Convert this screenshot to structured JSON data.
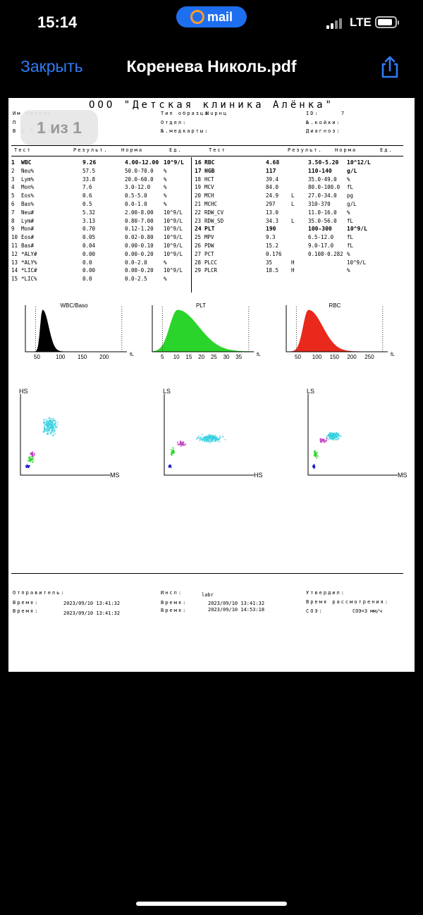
{
  "status_bar": {
    "time": "15:14",
    "pill_label": "mail",
    "network": "LTE"
  },
  "nav": {
    "close_label": "Закрыть",
    "title": "Коренева Николь.pdf"
  },
  "page_badge": "1 из 1",
  "report": {
    "clinic": "ООО \"Детская клиника Алёнка\"",
    "header_fields": [
      {
        "text": "Им         николь"
      },
      {
        "text": "П"
      },
      {
        "text": "В              1 5 День"
      },
      {
        "text": "Тип образца"
      },
      {
        "text": "Nuрнц"
      },
      {
        "text": "Отдел:"
      },
      {
        "text": "№.медкарты:"
      },
      {
        "text": "ID:"
      },
      {
        "text": "7"
      },
      {
        "text": "№.койки:"
      },
      {
        "text": "Диагноз:"
      }
    ],
    "col_headers": {
      "test": "Тест",
      "result": "Результ.",
      "norm": "Норма",
      "unit": "Ед."
    },
    "left_rows": [
      {
        "n": "1",
        "name": "WBC",
        "val": "9.26",
        "flag": "",
        "norm": "4.00-12.00",
        "unit": "10^9/L",
        "bold": true
      },
      {
        "n": "2",
        "name": "Neu%",
        "val": "57.5",
        "flag": "",
        "norm": "50.0-70.0",
        "unit": "%",
        "bold": false
      },
      {
        "n": "3",
        "name": "Lym%",
        "val": "33.8",
        "flag": "",
        "norm": "20.0-60.0",
        "unit": "%",
        "bold": false
      },
      {
        "n": "4",
        "name": "Mon%",
        "val": "7.6",
        "flag": "",
        "norm": "3.0-12.0",
        "unit": "%",
        "bold": false
      },
      {
        "n": "5",
        "name": "Eos%",
        "val": "0.6",
        "flag": "",
        "norm": "0.5-5.0",
        "unit": "%",
        "bold": false
      },
      {
        "n": "6",
        "name": "Bas%",
        "val": "0.5",
        "flag": "",
        "norm": "0.0-1.0",
        "unit": "%",
        "bold": false
      },
      {
        "n": "7",
        "name": "Neu#",
        "val": "5.32",
        "flag": "",
        "norm": "2.00-8.00",
        "unit": "10^9/L",
        "bold": false
      },
      {
        "n": "8",
        "name": "Lym#",
        "val": "3.13",
        "flag": "",
        "norm": "0.80-7.00",
        "unit": "10^9/L",
        "bold": false
      },
      {
        "n": "9",
        "name": "Mon#",
        "val": "0.70",
        "flag": "",
        "norm": "0.12-1.20",
        "unit": "10^9/L",
        "bold": false
      },
      {
        "n": "10",
        "name": "Eos#",
        "val": "0.05",
        "flag": "",
        "norm": "0.02-0.80",
        "unit": "10^9/L",
        "bold": false
      },
      {
        "n": "11",
        "name": "Bas#",
        "val": "0.04",
        "flag": "",
        "norm": "0.00-0.10",
        "unit": "10^9/L",
        "bold": false
      },
      {
        "n": "12",
        "name": "*ALY#",
        "val": "0.00",
        "flag": "",
        "norm": "0.00-0.20",
        "unit": "10^9/L",
        "bold": false
      },
      {
        "n": "13",
        "name": "*ALY%",
        "val": "0.0",
        "flag": "",
        "norm": "0.0-2.0",
        "unit": "%",
        "bold": false
      },
      {
        "n": "14",
        "name": "*LIC#",
        "val": "0.00",
        "flag": "",
        "norm": "0.00-0.20",
        "unit": "10^9/L",
        "bold": false
      },
      {
        "n": "15",
        "name": "*LIC%",
        "val": "0.0",
        "flag": "",
        "norm": "0.0-2.5",
        "unit": "%",
        "bold": false
      }
    ],
    "right_rows": [
      {
        "n": "16",
        "name": "RBC",
        "val": "4.68",
        "flag": "",
        "norm": "3.50-5.20",
        "unit": "10^12/L",
        "bold": true
      },
      {
        "n": "17",
        "name": "HGB",
        "val": "117",
        "flag": "",
        "norm": "110-140",
        "unit": "g/L",
        "bold": true
      },
      {
        "n": "18",
        "name": "HCT",
        "val": "39.4",
        "flag": "",
        "norm": "35.0-49.0",
        "unit": "%",
        "bold": false
      },
      {
        "n": "19",
        "name": "MCV",
        "val": "84.0",
        "flag": "",
        "norm": "80.0-100.0",
        "unit": "fL",
        "bold": false
      },
      {
        "n": "20",
        "name": "MCH",
        "val": "24.9",
        "flag": "L",
        "norm": "27.0-34.0",
        "unit": "pg",
        "bold": false
      },
      {
        "n": "21",
        "name": "MCHC",
        "val": "297",
        "flag": "L",
        "norm": "310-370",
        "unit": "g/L",
        "bold": false
      },
      {
        "n": "22",
        "name": "RDW_CV",
        "val": "13.0",
        "flag": "",
        "norm": "11.0-16.0",
        "unit": "%",
        "bold": false
      },
      {
        "n": "23",
        "name": "RDW_SD",
        "val": "34.3",
        "flag": "L",
        "norm": "35.0-56.0",
        "unit": "fL",
        "bold": false
      },
      {
        "n": "24",
        "name": "PLT",
        "val": "190",
        "flag": "",
        "norm": "100-300",
        "unit": "10^9/L",
        "bold": true
      },
      {
        "n": "25",
        "name": "MPV",
        "val": "9.3",
        "flag": "",
        "norm": "6.5-12.0",
        "unit": "fL",
        "bold": false
      },
      {
        "n": "26",
        "name": "PDW",
        "val": "15.2",
        "flag": "",
        "norm": "9.0-17.0",
        "unit": "fL",
        "bold": false
      },
      {
        "n": "27",
        "name": "PCT",
        "val": "0.176",
        "flag": "",
        "norm": "0.108-0.282",
        "unit": "%",
        "bold": false
      },
      {
        "n": "28",
        "name": "PLCC",
        "val": "35",
        "flag": "H",
        "norm": "",
        "unit": "10^9/L",
        "bold": false
      },
      {
        "n": "29",
        "name": "PLCR",
        "val": "18.5",
        "flag": "H",
        "norm": "",
        "unit": "%",
        "bold": false
      }
    ],
    "histograms": [
      {
        "title": "WBC/Baso",
        "ticks": [
          "50",
          "100",
          "150",
          "200"
        ],
        "unit": "fL",
        "color": "#000000",
        "peak": 0.17,
        "width": 0.05
      },
      {
        "title": "PLT",
        "ticks": [
          "5",
          "10",
          "15",
          "20",
          "25",
          "30",
          "35"
        ],
        "unit": "fL",
        "color": "#2bd42b",
        "peak": 0.25,
        "width": 0.18
      },
      {
        "title": "RBC",
        "ticks": [
          "50",
          "100",
          "150",
          "200",
          "250"
        ],
        "unit": "fL",
        "color": "#e8291c",
        "peak": 0.22,
        "width": 0.12
      }
    ],
    "scatters": [
      {
        "y_label": "HS",
        "x_label": "MS"
      },
      {
        "y_label": "LS",
        "x_label": "HS"
      },
      {
        "y_label": "LS",
        "x_label": "MS"
      }
    ],
    "footer": {
      "sender_label": "Отправитель:",
      "time1_label": "Время:",
      "time1": "2023/09/10 13:41:32",
      "time2_label": "Время:",
      "time2": "2023/09/10 13:41:32",
      "inspector_label": "Инсп:",
      "inspector": "labr",
      "time3_label": "Время:",
      "time3": "2023/09/10 13:41:32",
      "time4_label": "Время:",
      "time4": "2023/09/10 14:53:18",
      "approved_label": "Утвердил:",
      "review_label": "Время рассмотрения:",
      "esr_label": "СОЭ:",
      "esr_value": "СОЭ=3 мм/ч"
    }
  }
}
